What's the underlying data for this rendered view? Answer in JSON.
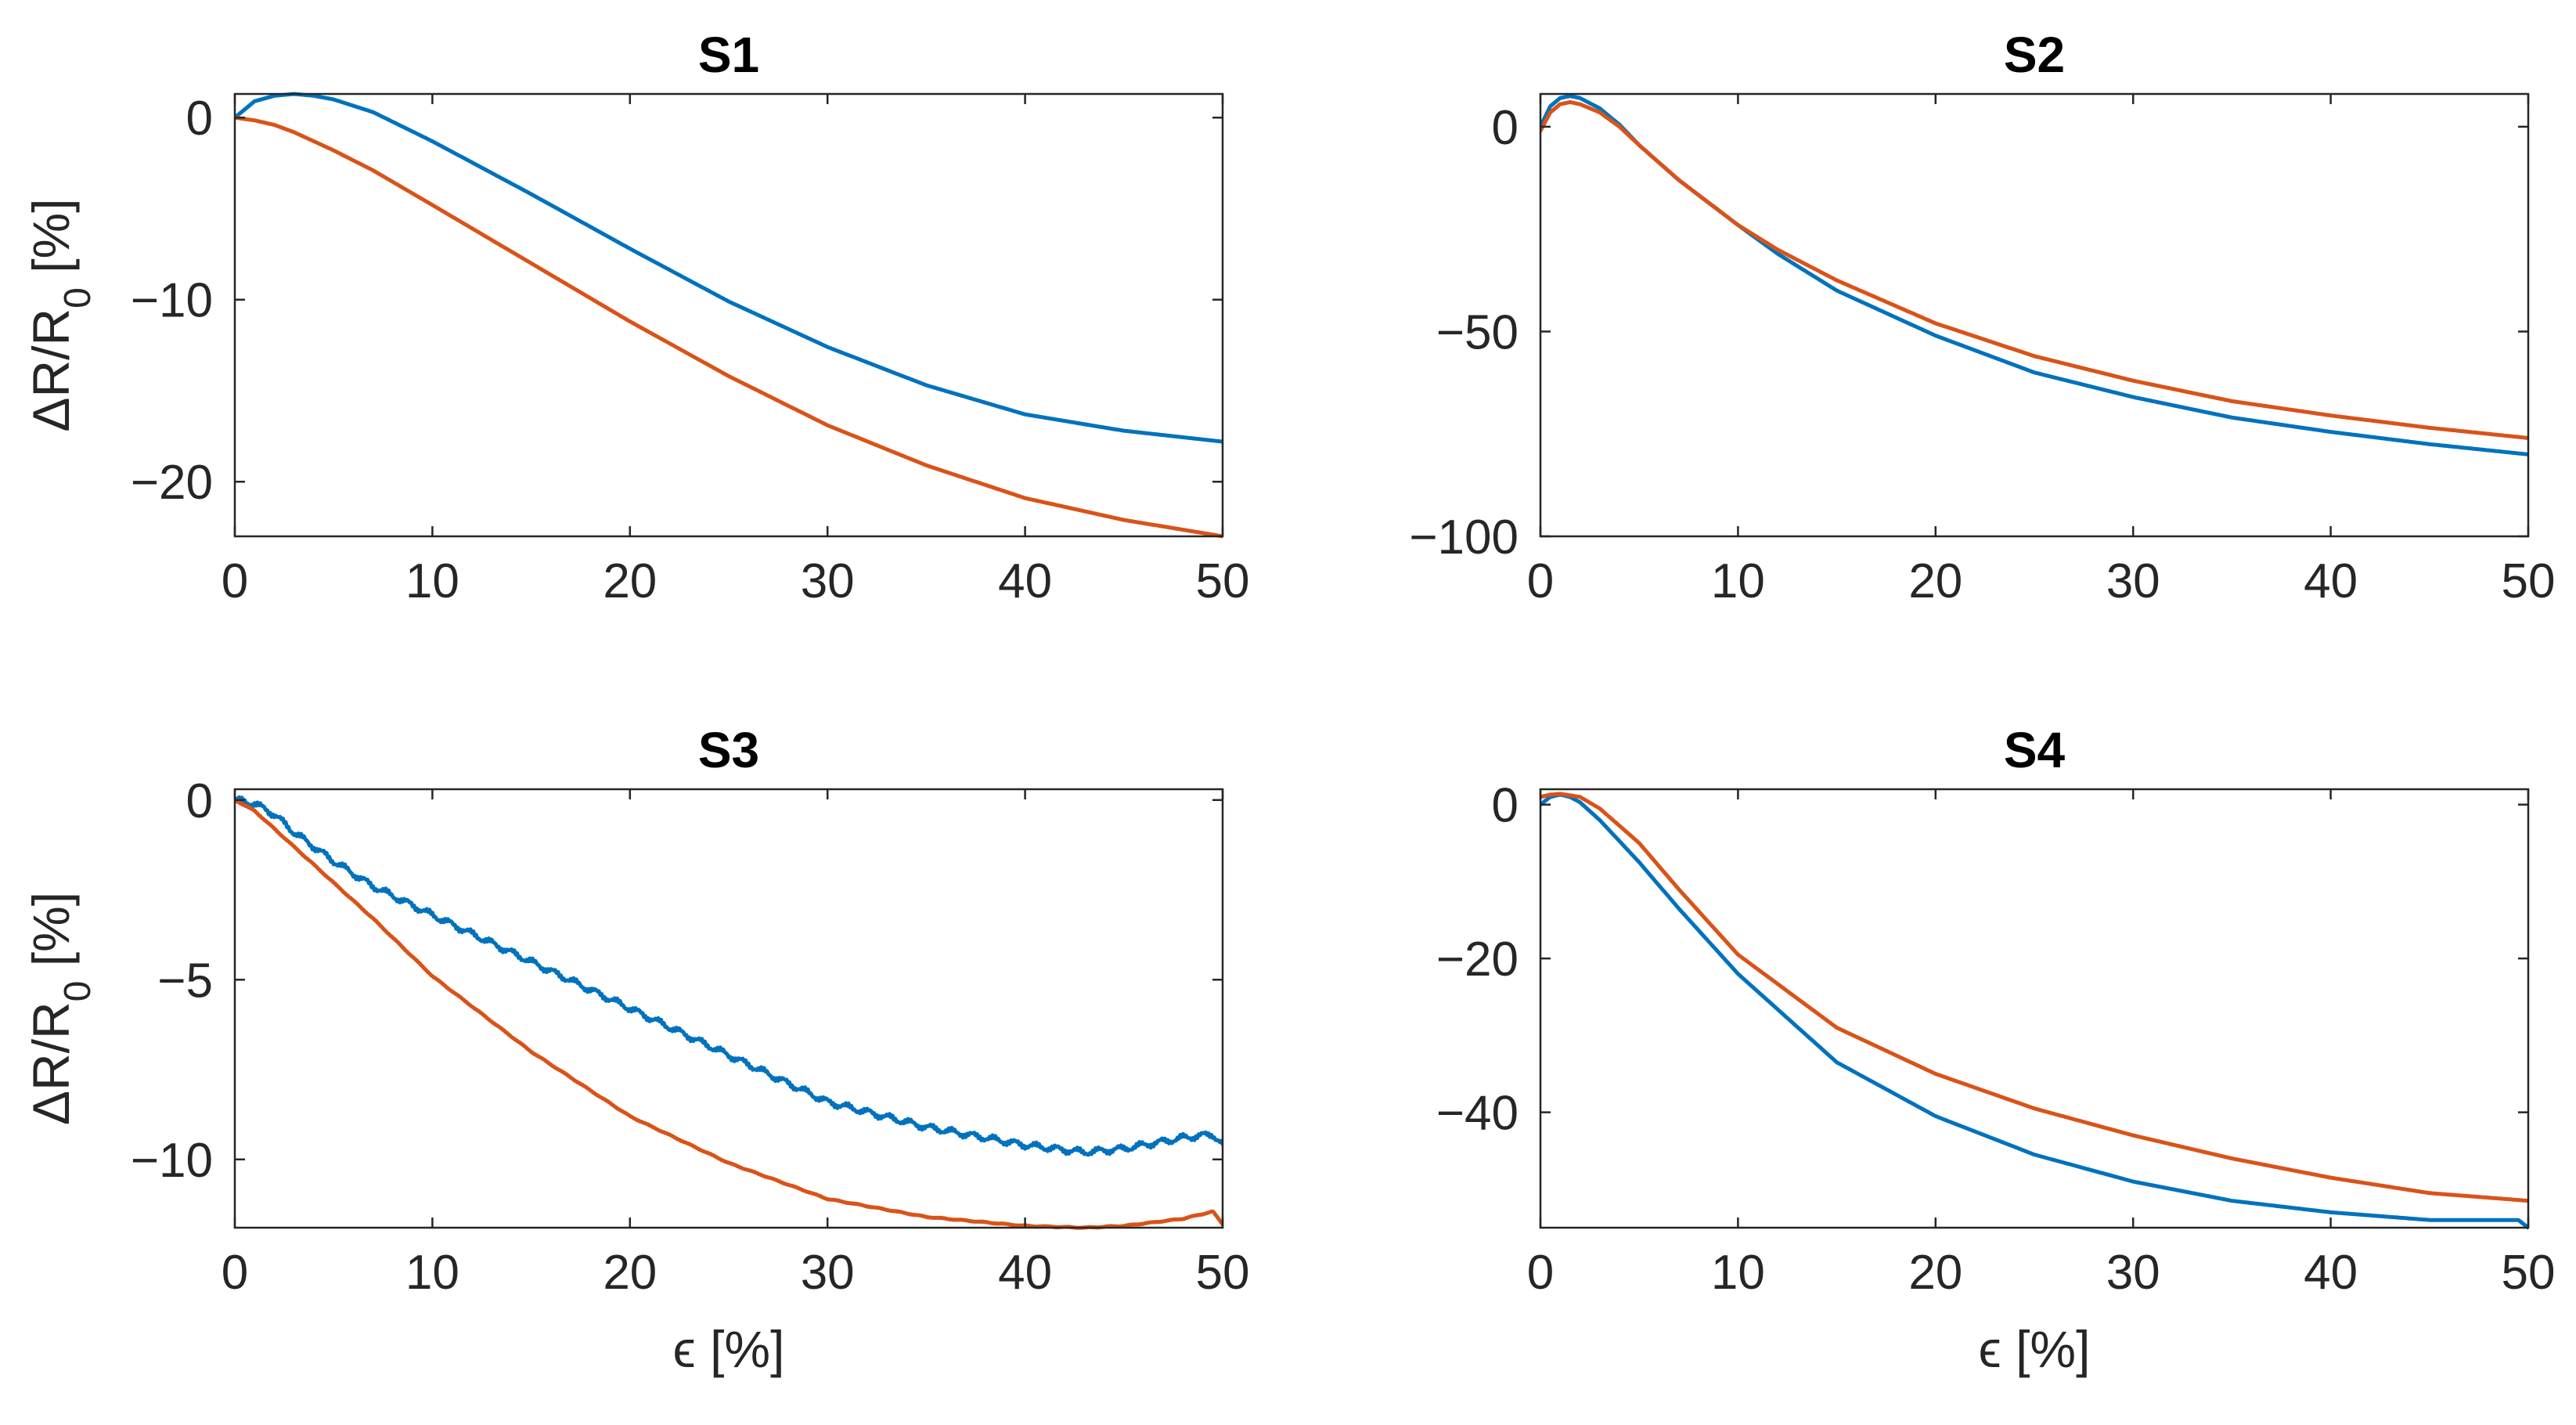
{
  "chart_data": [
    {
      "type": "line",
      "title": "S1",
      "xlabel": "",
      "ylabel": "ΔR/R0 [%]",
      "xlim": [
        0,
        50
      ],
      "ylim": [
        -23,
        1.3
      ],
      "xticks": [
        0,
        10,
        20,
        30,
        40,
        50
      ],
      "xtick_labels": [
        "0",
        "10",
        "20",
        "30",
        "40",
        "50"
      ],
      "yticks": [
        0,
        -10,
        -20
      ],
      "ytick_labels": [
        "0",
        "−10",
        "−20"
      ],
      "series": [
        {
          "name": "blue",
          "color": "#0072BD",
          "noise": 0,
          "x": [
            0,
            1,
            2,
            3,
            4,
            5,
            7,
            10,
            15,
            20,
            25,
            30,
            35,
            40,
            45,
            50
          ],
          "y": [
            0,
            0.9,
            1.2,
            1.3,
            1.2,
            1.0,
            0.3,
            -1.3,
            -4.2,
            -7.2,
            -10.1,
            -12.6,
            -14.7,
            -16.3,
            -17.2,
            -17.8
          ]
        },
        {
          "name": "orange",
          "color": "#D95319",
          "noise": 0,
          "x": [
            0,
            1,
            2,
            3,
            5,
            7,
            10,
            15,
            20,
            25,
            30,
            35,
            40,
            45,
            50
          ],
          "y": [
            0,
            -0.15,
            -0.4,
            -0.8,
            -1.8,
            -2.9,
            -4.8,
            -8.0,
            -11.2,
            -14.2,
            -16.9,
            -19.1,
            -20.9,
            -22.1,
            -23.0
          ]
        }
      ]
    },
    {
      "type": "line",
      "title": "S2",
      "xlabel": "",
      "ylabel": "",
      "xlim": [
        0,
        50
      ],
      "ylim": [
        -100,
        8
      ],
      "xticks": [
        0,
        10,
        20,
        30,
        40,
        50
      ],
      "xtick_labels": [
        "0",
        "10",
        "20",
        "30",
        "40",
        "50"
      ],
      "yticks": [
        0,
        -50,
        -100
      ],
      "ytick_labels": [
        "0",
        "−50",
        "−100"
      ],
      "series": [
        {
          "name": "blue",
          "color": "#0072BD",
          "noise": 0,
          "x": [
            0,
            0.5,
            1,
            1.5,
            2,
            3,
            4,
            5,
            7,
            10,
            12,
            15,
            20,
            25,
            30,
            35,
            40,
            45,
            50
          ],
          "y": [
            0,
            5,
            7,
            7.5,
            7,
            4.5,
            0.5,
            -4.5,
            -13,
            -24,
            -31,
            -40,
            -51,
            -60,
            -66,
            -71,
            -74.5,
            -77.5,
            -80
          ]
        },
        {
          "name": "orange",
          "color": "#D95319",
          "noise": 0,
          "x": [
            0,
            0.5,
            1,
            1.5,
            2,
            3,
            4,
            5,
            7,
            10,
            12,
            15,
            20,
            25,
            30,
            35,
            40,
            45,
            50
          ],
          "y": [
            -1,
            3.5,
            5.5,
            6,
            5.5,
            3.5,
            0,
            -4.5,
            -13,
            -24,
            -30,
            -37.5,
            -48,
            -56,
            -62,
            -67,
            -70.5,
            -73.5,
            -76
          ]
        }
      ]
    },
    {
      "type": "line",
      "title": "S3",
      "xlabel": "ϵ [%]",
      "ylabel": "ΔR/R0 [%]",
      "xlim": [
        0,
        50
      ],
      "ylim": [
        -11.9,
        0.3
      ],
      "xticks": [
        0,
        10,
        20,
        30,
        40,
        50
      ],
      "xtick_labels": [
        "0",
        "10",
        "20",
        "30",
        "40",
        "50"
      ],
      "yticks": [
        0,
        -5,
        -10
      ],
      "ytick_labels": [
        "0",
        "−5",
        "−10"
      ],
      "series": [
        {
          "name": "blue",
          "color": "#0072BD",
          "noise": 0.07,
          "x": [
            0,
            1,
            2,
            3,
            5,
            7,
            10,
            15,
            20,
            25,
            30,
            35,
            40,
            43,
            45,
            48,
            49.5,
            50
          ],
          "y": [
            0,
            -0.1,
            -0.4,
            -0.9,
            -1.7,
            -2.4,
            -3.2,
            -4.5,
            -5.8,
            -7.1,
            -8.4,
            -9.1,
            -9.6,
            -9.8,
            -9.7,
            -9.4,
            -9.3,
            -9.6
          ]
        },
        {
          "name": "orange",
          "color": "#D95319",
          "noise": 0.01,
          "x": [
            0,
            1,
            2,
            3,
            5,
            7,
            10,
            15,
            20,
            25,
            30,
            35,
            40,
            43,
            45,
            48,
            49.5,
            50
          ],
          "y": [
            0,
            -0.3,
            -0.8,
            -1.3,
            -2.3,
            -3.3,
            -4.9,
            -7.0,
            -8.8,
            -10.1,
            -11.1,
            -11.6,
            -11.85,
            -11.9,
            -11.85,
            -11.65,
            -11.45,
            -11.8
          ]
        }
      ]
    },
    {
      "type": "line",
      "title": "S4",
      "xlabel": "ϵ [%]",
      "ylabel": "",
      "xlim": [
        0,
        50
      ],
      "ylim": [
        -55,
        2
      ],
      "xticks": [
        0,
        10,
        20,
        30,
        40,
        50
      ],
      "xtick_labels": [
        "0",
        "10",
        "20",
        "30",
        "40",
        "50"
      ],
      "yticks": [
        0,
        -20,
        -40
      ],
      "ytick_labels": [
        "0",
        "−20",
        "−40"
      ],
      "series": [
        {
          "name": "blue",
          "color": "#0072BD",
          "noise": 0,
          "x": [
            0,
            0.5,
            1,
            1.5,
            2,
            3,
            5,
            7,
            10,
            15,
            20,
            25,
            30,
            35,
            40,
            45,
            49.5,
            50
          ],
          "y": [
            0,
            1,
            1.3,
            1,
            0.3,
            -2,
            -7.5,
            -13.5,
            -22,
            -33.5,
            -40.5,
            -45.5,
            -49,
            -51.5,
            -53,
            -54,
            -54,
            -55
          ]
        },
        {
          "name": "orange",
          "color": "#D95319",
          "noise": 0,
          "x": [
            0,
            0.5,
            1,
            2,
            3,
            5,
            7,
            10,
            15,
            20,
            25,
            30,
            35,
            40,
            45,
            50
          ],
          "y": [
            1,
            1.3,
            1.4,
            1,
            -0.5,
            -5,
            -11,
            -19.5,
            -29,
            -35,
            -39.5,
            -43,
            -46,
            -48.5,
            -50.5,
            -51.5
          ]
        }
      ]
    }
  ]
}
